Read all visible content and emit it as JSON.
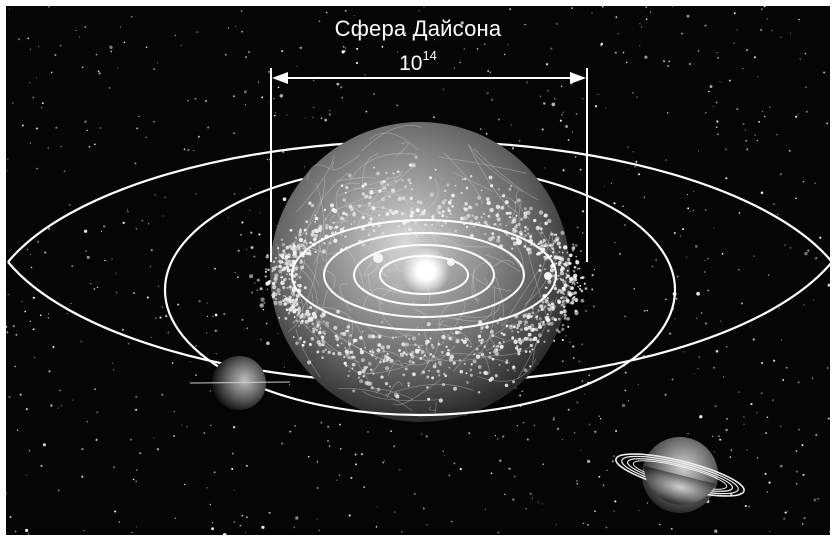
{
  "diagram": {
    "title": "Сфера Дайсона",
    "scale_base": "10",
    "scale_exponent": "14"
  },
  "colors": {
    "frame": "#ffffff",
    "space": "#050505",
    "lines": "#ffffff",
    "sphere": "#8a8a8a"
  },
  "icons": [
    "star-icon",
    "dyson-sphere-icon",
    "planet-icon",
    "ringed-planet-icon"
  ]
}
